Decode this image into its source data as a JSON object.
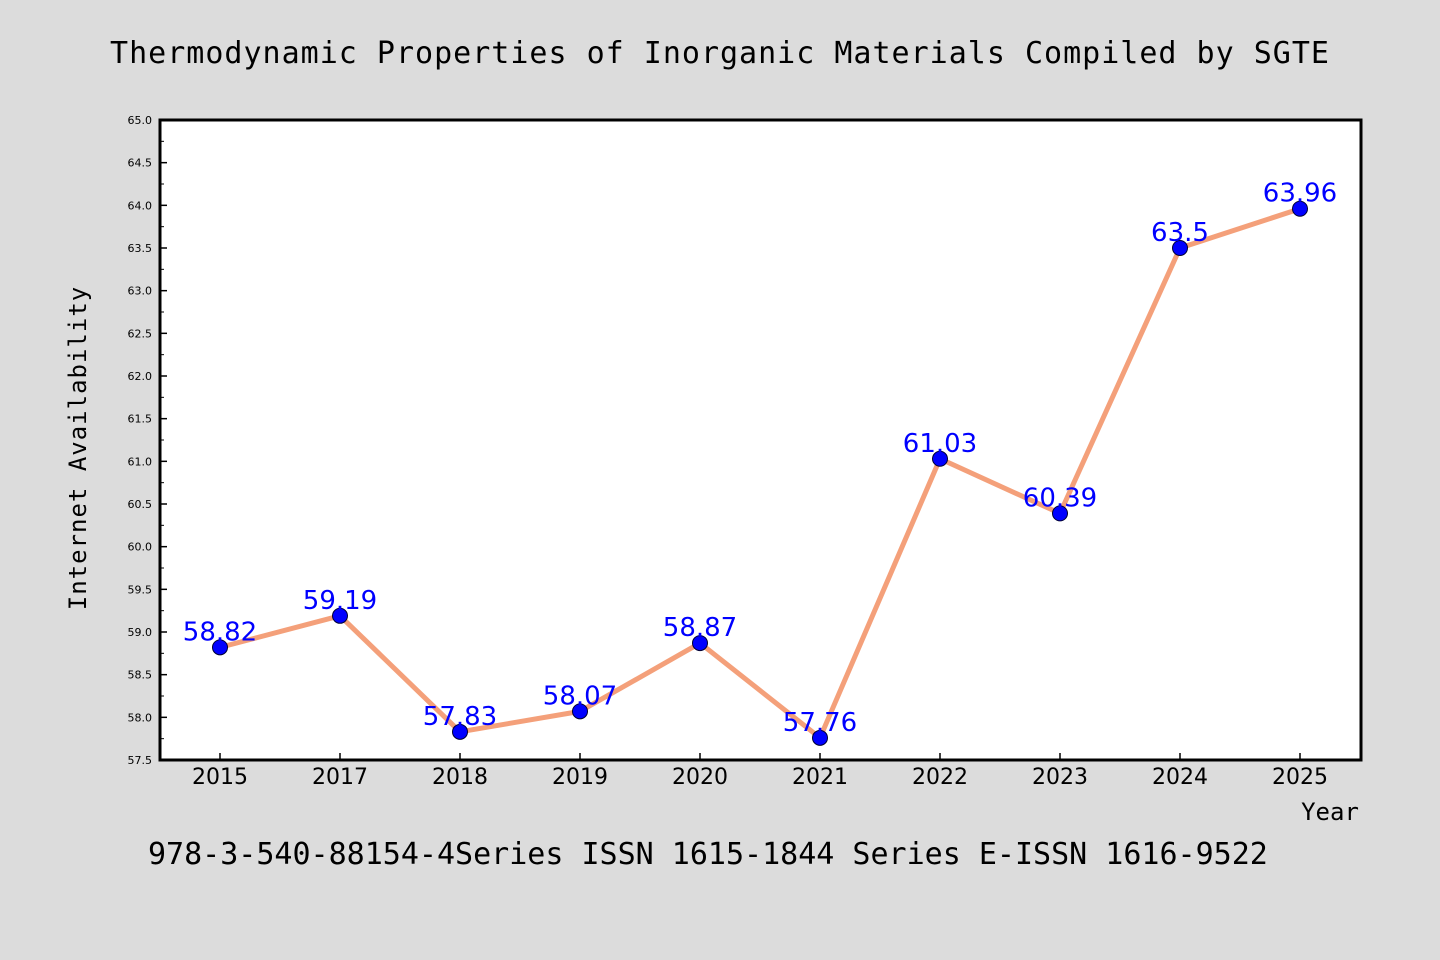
{
  "colors": {
    "background": "#dcdcdc",
    "plot_background": "#ffffff",
    "line": "#f4a07a",
    "marker": "#0000ff",
    "data_label": "#0000ff",
    "axis": "#000000"
  },
  "chart_data": {
    "type": "line",
    "title": "Thermodynamic Properties of Inorganic Materials Compiled by SGTE",
    "footer": "978-3-540-88154-4Series ISSN 1615-1844 Series E-ISSN 1616-9522",
    "xlabel": "Year",
    "ylabel": "Internet Availability",
    "categories": [
      "2015",
      "2017",
      "2018",
      "2019",
      "2020",
      "2021",
      "2022",
      "2023",
      "2024",
      "2025"
    ],
    "series": [
      {
        "values": [
          58.82,
          59.19,
          57.83,
          58.07,
          58.87,
          57.76,
          61.03,
          60.39,
          63.5,
          63.96
        ],
        "data_labels": [
          "58.82",
          "59.19",
          "57.83",
          "58.07",
          "58.87",
          "57.76",
          "61.03",
          "60.39",
          "63.5",
          "63.96"
        ]
      }
    ],
    "ylim": [
      57.5,
      65.0
    ],
    "yticks": [
      "57.5",
      "58.0",
      "58.5",
      "59.0",
      "59.5",
      "60.0",
      "60.5",
      "61.0",
      "61.5",
      "62.0",
      "62.5",
      "63.0",
      "63.5",
      "64.0",
      "64.5",
      "65.0"
    ],
    "grid": false,
    "legend": "none"
  }
}
